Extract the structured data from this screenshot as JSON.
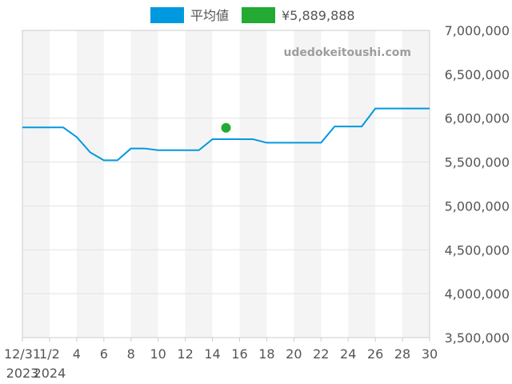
{
  "chart_data": {
    "type": "line",
    "watermark": "udedokeitoushi.com",
    "legend": [
      {
        "label": "平均値",
        "color": "#0099e0"
      },
      {
        "label": "¥5,889,888",
        "color": "#22aa33"
      }
    ],
    "legend_position": "top-center",
    "x_ticks": [
      {
        "day": -1,
        "label": "12/31",
        "sub": "2023"
      },
      {
        "day": 1,
        "label": "1/2",
        "sub": "2024"
      },
      {
        "day": 3,
        "label": "4"
      },
      {
        "day": 5,
        "label": "6"
      },
      {
        "day": 7,
        "label": "8"
      },
      {
        "day": 9,
        "label": "10"
      },
      {
        "day": 11,
        "label": "12"
      },
      {
        "day": 13,
        "label": "14"
      },
      {
        "day": 15,
        "label": "16"
      },
      {
        "day": 17,
        "label": "18"
      },
      {
        "day": 19,
        "label": "20"
      },
      {
        "day": 21,
        "label": "22"
      },
      {
        "day": 23,
        "label": "24"
      },
      {
        "day": 25,
        "label": "26"
      },
      {
        "day": 27,
        "label": "28"
      },
      {
        "day": 29,
        "label": "30"
      }
    ],
    "xlim": [
      -1,
      29
    ],
    "ylim": [
      3500000,
      7000000
    ],
    "y_ticks": [
      {
        "value": 3500000,
        "label": "3,500,000"
      },
      {
        "value": 4000000,
        "label": "4,000,000"
      },
      {
        "value": 4500000,
        "label": "4,500,000"
      },
      {
        "value": 5000000,
        "label": "5,000,000"
      },
      {
        "value": 5500000,
        "label": "5,500,000"
      },
      {
        "value": 6000000,
        "label": "6,000,000"
      },
      {
        "value": 6500000,
        "label": "6,500,000"
      },
      {
        "value": 7000000,
        "label": "7,000,000"
      }
    ],
    "y_axis_side": "right",
    "grid": true,
    "alternating_bands": true,
    "series": [
      {
        "name": "平均値",
        "color": "#0099e0",
        "x": [
          -1,
          0,
          1,
          2,
          3,
          4,
          5,
          6,
          7,
          8,
          9,
          10,
          11,
          12,
          13,
          14,
          15,
          16,
          17,
          18,
          19,
          20,
          21,
          22,
          23,
          24,
          25,
          26,
          27,
          28,
          29
        ],
        "y": [
          5895000,
          5895000,
          5895000,
          5895000,
          5785000,
          5610000,
          5520000,
          5520000,
          5655000,
          5655000,
          5635000,
          5635000,
          5635000,
          5635000,
          5760000,
          5760000,
          5760000,
          5760000,
          5720000,
          5720000,
          5720000,
          5720000,
          5720000,
          5905000,
          5905000,
          5905000,
          6110000,
          6110000,
          6110000,
          6110000,
          6110000
        ]
      },
      {
        "name": "¥5,889,888",
        "color": "#22aa33",
        "type": "scatter",
        "x": [
          14
        ],
        "y": [
          5889888
        ]
      }
    ]
  }
}
